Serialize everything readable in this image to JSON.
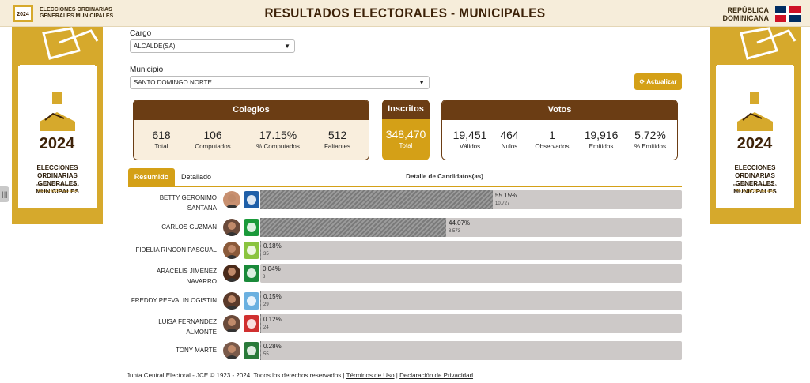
{
  "header": {
    "logo_year": "2024",
    "logo_text_line1": "ELECCIONES ORDINARIAS",
    "logo_text_line2": "GENERALES MUNICIPALES",
    "title": "RESULTADOS ELECTORALES - MUNICIPALES",
    "country_line1": "REPÚBLICA",
    "country_line2": "DOMINICANA",
    "flag_colors": {
      "blue": "#002d62",
      "red": "#ce1126"
    }
  },
  "banner": {
    "year": "2024",
    "title_line1": "ELECCIONES ORDINARIAS",
    "title_line2": "GENERALES MUNICIPALES",
    "subtitle": "REPÚBLICA DOMINICANA",
    "slogan": "Por ti y la Democracia",
    "color": "#d6a92c"
  },
  "filters": {
    "cargo_label": "Cargo",
    "cargo_value": "ALCALDE(SA)",
    "municipio_label": "Municipio",
    "municipio_value": "SANTO DOMINGO NORTE",
    "update_button": "Actualizar"
  },
  "colegios": {
    "title": "Colegios",
    "stats": [
      {
        "value": "618",
        "label": "Total"
      },
      {
        "value": "106",
        "label": "Computados"
      },
      {
        "value": "17.15%",
        "label": "% Computados"
      },
      {
        "value": "512",
        "label": "Faltantes"
      }
    ]
  },
  "inscritos": {
    "title": "Inscritos",
    "value": "348,470",
    "label": "Total"
  },
  "votos": {
    "title": "Votos",
    "stats": [
      {
        "value": "19,451",
        "label": "Válidos"
      },
      {
        "value": "464",
        "label": "Nulos"
      },
      {
        "value": "1",
        "label": "Observados"
      },
      {
        "value": "19,916",
        "label": "Emitidos"
      },
      {
        "value": "5.72%",
        "label": "% Emitidos"
      }
    ]
  },
  "tabs": {
    "active": "Resumido",
    "other": "Detallado"
  },
  "detail_title": "Detalle de Candidatos(as)",
  "candidates": [
    {
      "name_line1": "BETTY GERONIMO",
      "name_line2": "SANTANA",
      "pct": "55.15%",
      "pct_value": 55.15,
      "votes": "10,727",
      "party_icon": "prm-logo-icon",
      "party_color": "#1f5fa8"
    },
    {
      "name_line1": "CARLOS GUZMAN",
      "name_line2": "",
      "pct": "44.07%",
      "pct_value": 44.07,
      "votes": "8,573",
      "party_icon": "fp-logo-icon",
      "party_color": "#1a9a3a"
    },
    {
      "name_line1": "FIDELIA RINCON PASCUAL",
      "name_line2": "",
      "pct": "0.18%",
      "pct_value": 0.18,
      "votes": "35",
      "party_icon": "party-leaf-icon",
      "party_color": "#8ac43f"
    },
    {
      "name_line1": "ARACELIS JIMENEZ",
      "name_line2": "NAVARRO",
      "pct": "0.04%",
      "pct_value": 0.04,
      "votes": "8",
      "party_icon": "party-flag-icon",
      "party_color": "#1a8a3a"
    },
    {
      "name_line1": "FREDDY PEFVALIN OGISTIN",
      "name_line2": "",
      "pct": "0.15%",
      "pct_value": 0.15,
      "votes": "29",
      "party_icon": "party-circle-icon",
      "party_color": "#6ab0e0"
    },
    {
      "name_line1": "LUISA FERNANDEZ",
      "name_line2": "ALMONTE",
      "pct": "0.12%",
      "pct_value": 0.12,
      "votes": "24",
      "party_icon": "party-seal-icon",
      "party_color": "#d03030"
    },
    {
      "name_line1": "TONY MARTE",
      "name_line2": "",
      "pct": "0.28%",
      "pct_value": 0.28,
      "votes": "55",
      "party_icon": "party-emblem-icon",
      "party_color": "#2a7a3a"
    }
  ],
  "footer": {
    "text": "Junta Central Electoral - JCE © 1923 - 2024. Todos los derechos reservados |",
    "terms": "Términos de Uso",
    "sep": "|",
    "privacy": "Declaración de Privacidad"
  }
}
